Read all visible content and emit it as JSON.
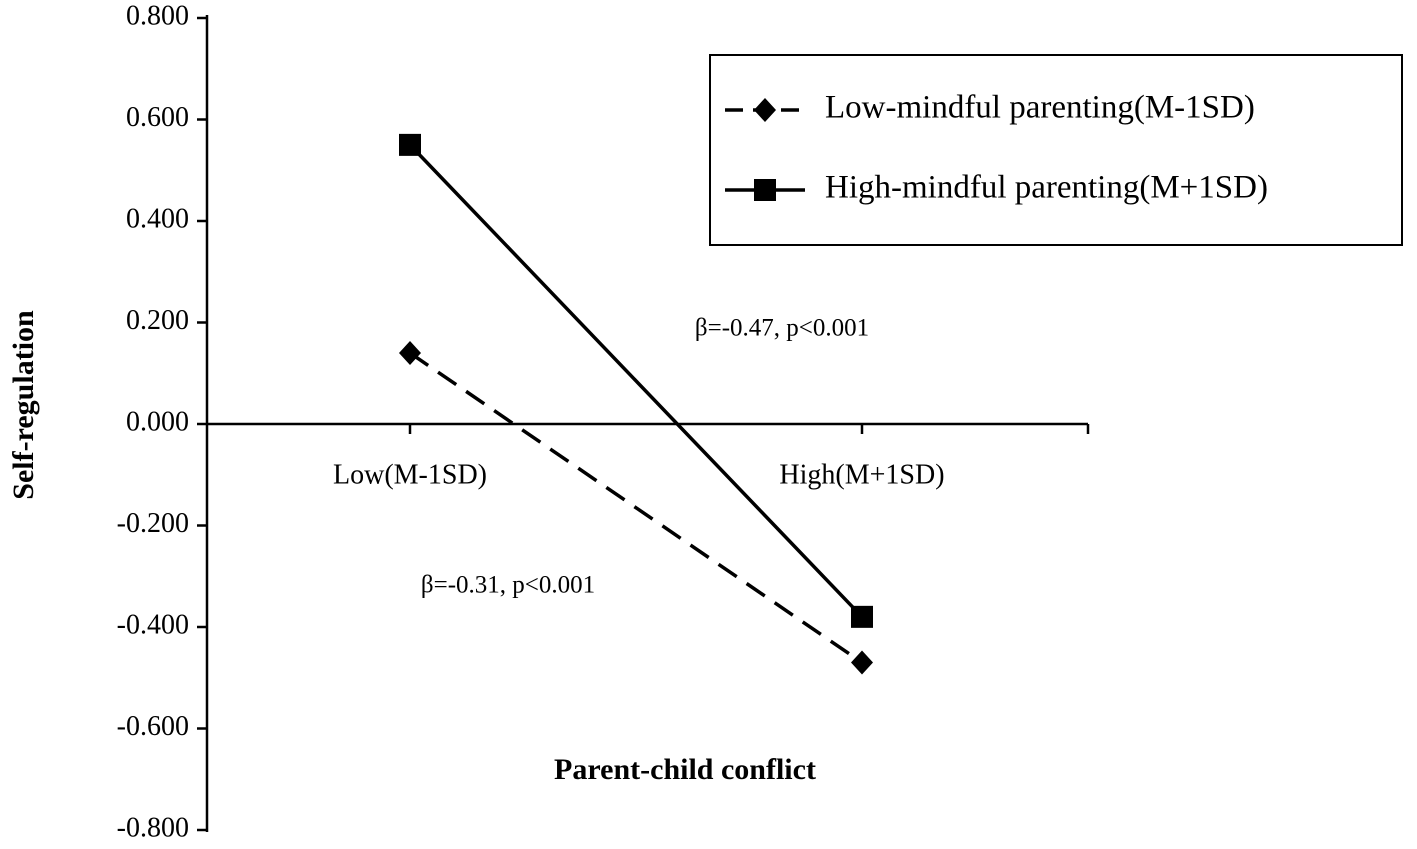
{
  "chart_data": {
    "type": "line",
    "x_label": "Parent-child conflict",
    "y_label": "Self-regulation",
    "categories": [
      "Low(M-1SD)",
      "High(M+1SD)"
    ],
    "series": [
      {
        "name": "Low-mindful parenting(M-1SD)",
        "color": "#000000",
        "line_style": "dashed",
        "marker": "diamond",
        "values": [
          0.14,
          -0.47
        ]
      },
      {
        "name": "High-mindful parenting(M+1SD)",
        "color": "#000000",
        "line_style": "solid",
        "marker": "square",
        "values": [
          0.55,
          -0.38
        ]
      }
    ],
    "ylim": [
      -0.8,
      0.8
    ],
    "yticks": [
      {
        "value": -0.8,
        "label": "-0.800"
      },
      {
        "value": -0.6,
        "label": "-0.600"
      },
      {
        "value": -0.4,
        "label": "-0.400"
      },
      {
        "value": -0.2,
        "label": "-0.200"
      },
      {
        "value": 0,
        "label": "0.000"
      },
      {
        "value": 0.2,
        "label": "0.200"
      },
      {
        "value": 0.4,
        "label": "0.400"
      },
      {
        "value": 0.6,
        "label": "0.600"
      },
      {
        "value": 0.8,
        "label": "0.800"
      }
    ],
    "annotations": [
      "β=-0.47, p<0.001",
      "β=-0.31, p<0.001"
    ],
    "legend": "upper right"
  }
}
